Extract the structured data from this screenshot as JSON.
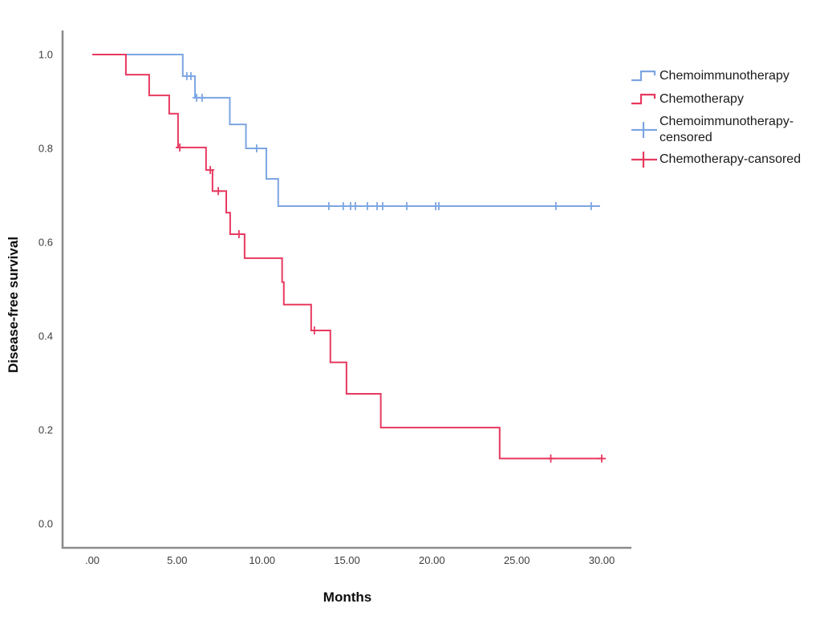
{
  "page": {
    "background": "#ffffff"
  },
  "colors": {
    "blue": "#7CA5E2",
    "red": "#E8395F",
    "axis": "#8C8C8C",
    "tick_text": "#3D3D3D",
    "label_text": "#0D0D0D"
  },
  "chart_data": {
    "type": "line",
    "subtype": "kaplan-meier-step",
    "title": "",
    "xlabel": "Months",
    "ylabel": "Disease-free survival",
    "xlim": [
      0,
      30
    ],
    "ylim": [
      0.0,
      1.0
    ],
    "grid": false,
    "legend_position": "right",
    "x_ticks": {
      "labels": [
        ".00",
        "5.00",
        "10.00",
        "15.00",
        "20.00",
        "25.00",
        "30.00"
      ],
      "values": [
        0,
        5,
        10,
        15,
        20,
        25,
        30
      ]
    },
    "y_ticks": {
      "labels": [
        "1.0",
        "0.8",
        "0.6",
        "0.4",
        "0.2",
        "0.0"
      ],
      "values": [
        1.0,
        0.8,
        0.6,
        0.4,
        0.2,
        0.0
      ]
    },
    "series": [
      {
        "name": "Chemoimmunotherapy",
        "color_key": "blue",
        "end_month": 29.9,
        "steps": [
          [
            0,
            1.0
          ],
          [
            5.33,
            0.954
          ],
          [
            6.05,
            0.908
          ],
          [
            8.1,
            0.851
          ],
          [
            9.05,
            0.8
          ],
          [
            10.25,
            0.735
          ],
          [
            10.95,
            0.677
          ]
        ],
        "censored": [
          [
            5.57,
            0.954
          ],
          [
            5.81,
            0.954
          ],
          [
            6.14,
            0.908
          ],
          [
            6.47,
            0.908
          ],
          [
            9.68,
            0.8
          ],
          [
            13.93,
            0.677
          ],
          [
            14.78,
            0.677
          ],
          [
            15.21,
            0.677
          ],
          [
            15.49,
            0.677
          ],
          [
            16.2,
            0.677
          ],
          [
            16.77,
            0.677
          ],
          [
            17.1,
            0.677
          ],
          [
            18.52,
            0.677
          ],
          [
            20.22,
            0.677
          ],
          [
            20.41,
            0.677
          ],
          [
            27.3,
            0.677
          ],
          [
            29.38,
            0.677
          ]
        ]
      },
      {
        "name": "Chemotherapy",
        "color_key": "red",
        "end_month": 30.1,
        "steps": [
          [
            0,
            1.0
          ],
          [
            1.98,
            0.957
          ],
          [
            3.35,
            0.913
          ],
          [
            4.53,
            0.874
          ],
          [
            5.05,
            0.802
          ],
          [
            6.7,
            0.754
          ],
          [
            7.08,
            0.709
          ],
          [
            7.89,
            0.663
          ],
          [
            8.12,
            0.617
          ],
          [
            8.97,
            0.566
          ],
          [
            11.18,
            0.515
          ],
          [
            11.28,
            0.467
          ],
          [
            12.89,
            0.412
          ],
          [
            14.02,
            0.344
          ],
          [
            14.97,
            0.277
          ],
          [
            16.99,
            0.205
          ],
          [
            23.99,
            0.139
          ]
        ],
        "censored": [
          [
            5.15,
            0.802
          ],
          [
            6.95,
            0.754
          ],
          [
            7.42,
            0.709
          ],
          [
            8.64,
            0.617
          ],
          [
            13.08,
            0.412
          ],
          [
            27.0,
            0.139
          ],
          [
            30.0,
            0.139
          ]
        ]
      }
    ]
  },
  "legend": {
    "items": [
      {
        "label": "Chemoimmunotherapy",
        "glyph": "step",
        "color_key": "blue"
      },
      {
        "label": "Chemotherapy",
        "glyph": "step",
        "color_key": "red"
      },
      {
        "label": "Chemoimmunotherapy-censored",
        "glyph": "plus",
        "color_key": "blue"
      },
      {
        "label": "Chemotherapy-cansored",
        "glyph": "plus",
        "color_key": "red"
      }
    ]
  }
}
